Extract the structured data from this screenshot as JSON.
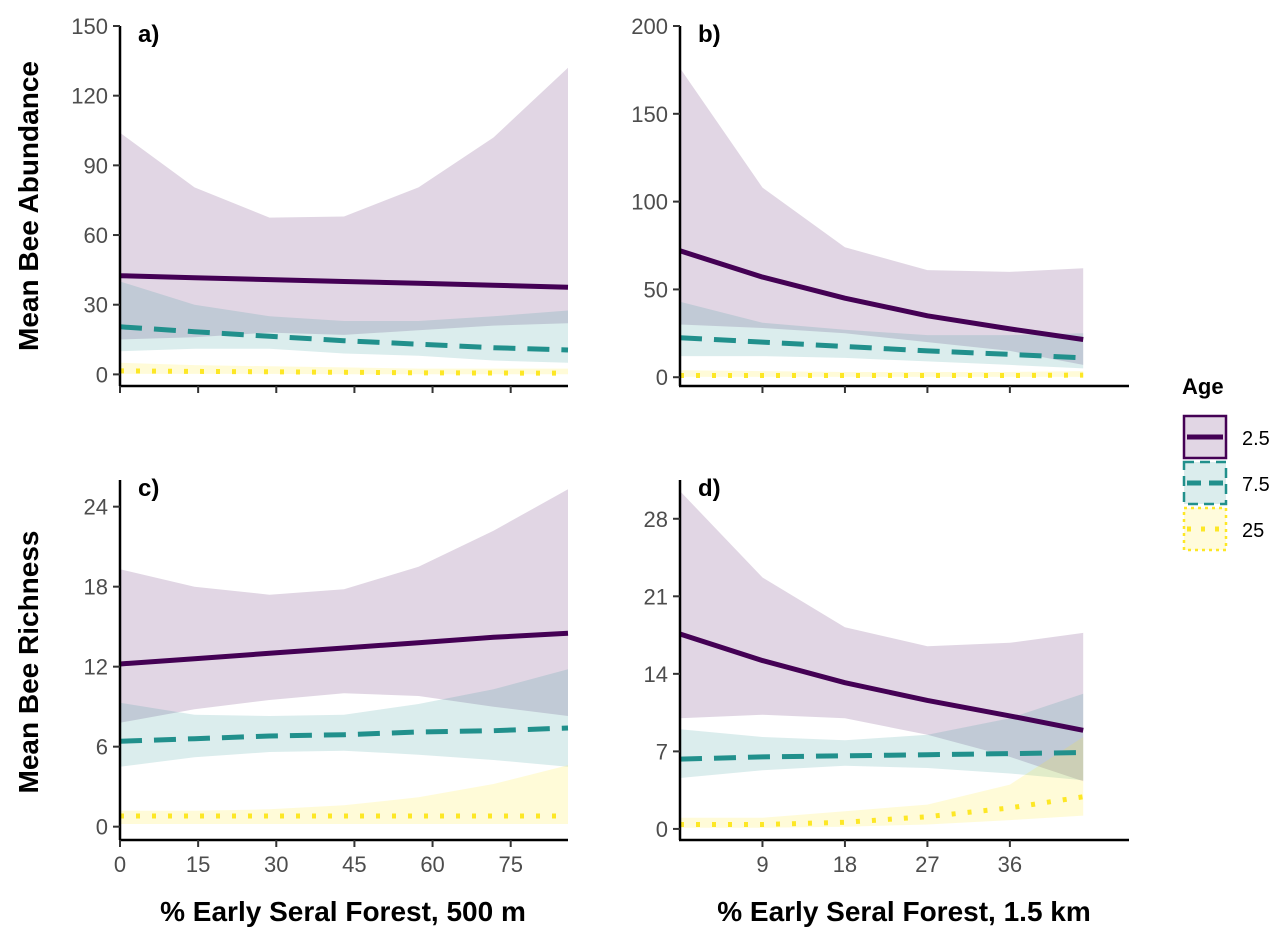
{
  "legend": {
    "title": "Age",
    "items": [
      {
        "label": "2.5",
        "color": "#440154",
        "dash": "solid"
      },
      {
        "label": "7.5",
        "color": "#21908C",
        "dash": "dashed"
      },
      {
        "label": "25",
        "color": "#FDE725",
        "dash": "dotted"
      }
    ]
  },
  "axis_titles": {
    "left_top": "Mean Bee Abundance",
    "left_bottom": "Mean Bee Richness",
    "bottom_left": "% Early Seral Forest, 500 m",
    "bottom_right": "% Early Seral Forest, 1.5 km"
  },
  "chart_data": [
    {
      "type": "line",
      "panel": "a)",
      "xlim": [
        0,
        86
      ],
      "ylim": [
        -5,
        150
      ],
      "xticks": [],
      "yticks": [
        0,
        30,
        60,
        90,
        120,
        150
      ],
      "xticks_minor": [
        0,
        15,
        30,
        45,
        60,
        75
      ],
      "series": [
        {
          "name": "2.5",
          "color": "#440154",
          "x": [
            0,
            14.3,
            28.7,
            43,
            57.3,
            71.7,
            86
          ],
          "y": [
            42.5,
            41.6,
            40.8,
            40,
            39.2,
            38.4,
            37.5
          ],
          "lower": [
            15,
            16,
            18,
            17,
            19,
            21,
            22
          ],
          "upper": [
            104,
            80.5,
            67.5,
            68,
            80.5,
            102,
            132
          ]
        },
        {
          "name": "7.5",
          "color": "#21908C",
          "x": [
            0,
            14.3,
            28.7,
            43,
            57.3,
            71.7,
            86
          ],
          "y": [
            20.5,
            18.4,
            16.4,
            14.5,
            13,
            11.5,
            10.5
          ],
          "lower": [
            10,
            11,
            11,
            9,
            8,
            6,
            5
          ],
          "upper": [
            40,
            30,
            25,
            23,
            23,
            25,
            27.5
          ]
        },
        {
          "name": "25",
          "color": "#FDE725",
          "x": [
            0,
            14.3,
            28.7,
            43,
            57.3,
            71.7,
            86
          ],
          "y": [
            1.5,
            1.3,
            1.1,
            0.9,
            0.7,
            0.6,
            0.5
          ],
          "lower": [
            0.2,
            0.2,
            0.2,
            0.1,
            0.1,
            0.1,
            0.1
          ],
          "upper": [
            5,
            4,
            3.5,
            3,
            2.5,
            2.5,
            2.5
          ]
        }
      ]
    },
    {
      "type": "line",
      "panel": "b)",
      "xlim": [
        0,
        49
      ],
      "ylim": [
        -5,
        200
      ],
      "xticks": [],
      "yticks": [
        0,
        50,
        100,
        150,
        200
      ],
      "xticks_minor": [
        9,
        18,
        27,
        36
      ],
      "series": [
        {
          "name": "2.5",
          "color": "#440154",
          "x": [
            0,
            9,
            18,
            27,
            36,
            44
          ],
          "y": [
            72,
            57,
            45,
            35,
            27.5,
            21.5
          ],
          "lower": [
            30,
            28,
            25,
            20,
            15,
            7
          ],
          "upper": [
            176,
            108,
            74,
            61,
            60,
            62
          ]
        },
        {
          "name": "7.5",
          "color": "#21908C",
          "x": [
            0,
            9,
            18,
            27,
            36,
            44
          ],
          "y": [
            22.5,
            20,
            17.5,
            15,
            13,
            11
          ],
          "lower": [
            12,
            12,
            11,
            9,
            7,
            5
          ],
          "upper": [
            43,
            31,
            27,
            24,
            24,
            25
          ]
        },
        {
          "name": "25",
          "color": "#FDE725",
          "x": [
            0,
            9,
            18,
            27,
            36,
            44
          ],
          "y": [
            1,
            1,
            1,
            1,
            1,
            1.2
          ],
          "lower": [
            0.2,
            0.2,
            0.2,
            0.2,
            0.2,
            0.2
          ],
          "upper": [
            4,
            3.5,
            3,
            3,
            3,
            3.5
          ]
        }
      ]
    },
    {
      "type": "line",
      "panel": "c)",
      "xlim": [
        0,
        86
      ],
      "ylim": [
        -1,
        26
      ],
      "xticks": [
        0,
        15,
        30,
        45,
        60,
        75
      ],
      "yticks": [
        0,
        6,
        12,
        18,
        24
      ],
      "series": [
        {
          "name": "2.5",
          "color": "#440154",
          "x": [
            0,
            14.3,
            28.7,
            43,
            57.3,
            71.7,
            86
          ],
          "y": [
            12.2,
            12.6,
            13,
            13.4,
            13.8,
            14.2,
            14.5
          ],
          "lower": [
            7.8,
            8.8,
            9.5,
            10,
            9.8,
            9,
            8.3
          ],
          "upper": [
            19.3,
            18,
            17.4,
            17.8,
            19.5,
            22.2,
            25.3
          ]
        },
        {
          "name": "7.5",
          "color": "#21908C",
          "x": [
            0,
            14.3,
            28.7,
            43,
            57.3,
            71.7,
            86
          ],
          "y": [
            6.4,
            6.6,
            6.8,
            6.9,
            7.1,
            7.2,
            7.4
          ],
          "lower": [
            4.5,
            5.2,
            5.6,
            5.7,
            5.4,
            5,
            4.5
          ],
          "upper": [
            9.3,
            8.4,
            8.3,
            8.4,
            9.2,
            10.3,
            11.8
          ]
        },
        {
          "name": "25",
          "color": "#FDE725",
          "x": [
            0,
            14.3,
            28.7,
            43,
            57.3,
            71.7,
            86
          ],
          "y": [
            0.8,
            0.8,
            0.8,
            0.8,
            0.8,
            0.8,
            0.8
          ],
          "lower": [
            0.2,
            0.2,
            0.2,
            0.2,
            0.2,
            0.2,
            0.2
          ],
          "upper": [
            1.2,
            1.2,
            1.3,
            1.6,
            2.2,
            3.2,
            4.6
          ]
        }
      ]
    },
    {
      "type": "line",
      "panel": "d)",
      "xlim": [
        0,
        49
      ],
      "ylim": [
        -1,
        31.5
      ],
      "xticks": [
        9,
        18,
        27,
        36
      ],
      "yticks": [
        0,
        7,
        14,
        21,
        28
      ],
      "series": [
        {
          "name": "2.5",
          "color": "#440154",
          "x": [
            0,
            9,
            18,
            27,
            36,
            44
          ],
          "y": [
            17.6,
            15.2,
            13.2,
            11.6,
            10.2,
            8.9
          ],
          "lower": [
            10,
            10.3,
            10,
            8.5,
            6.5,
            4.3
          ],
          "upper": [
            30.5,
            22.7,
            18.2,
            16.5,
            16.8,
            17.7
          ]
        },
        {
          "name": "7.5",
          "color": "#21908C",
          "x": [
            0,
            9,
            18,
            27,
            36,
            44
          ],
          "y": [
            6.3,
            6.5,
            6.6,
            6.7,
            6.8,
            6.9
          ],
          "lower": [
            4.6,
            5.3,
            5.7,
            5.5,
            5,
            4.4
          ],
          "upper": [
            9,
            8.3,
            8,
            8.5,
            10,
            12.2
          ]
        },
        {
          "name": "25",
          "color": "#FDE725",
          "x": [
            0,
            9,
            18,
            27,
            36,
            44
          ],
          "y": [
            0.4,
            0.4,
            0.6,
            1.1,
            1.9,
            2.9
          ],
          "lower": [
            0.1,
            0.1,
            0.2,
            0.4,
            0.8,
            1.2
          ],
          "upper": [
            1,
            1,
            1.6,
            2.2,
            4,
            8.3
          ]
        }
      ]
    }
  ]
}
